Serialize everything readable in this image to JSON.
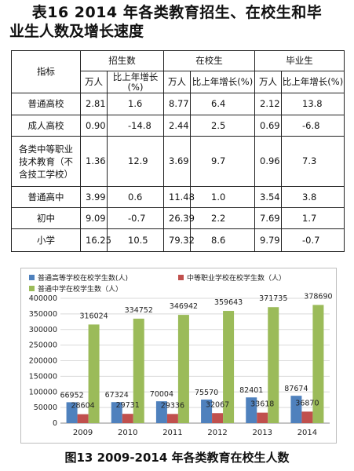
{
  "title": {
    "line1": "表16  2014 年各类教育招生、在校生和毕",
    "line2": "业生人数及增长速度"
  },
  "table": {
    "corner": "指标",
    "groups": [
      "招生数",
      "在校生",
      "毕业生"
    ],
    "subheaders": [
      "万人",
      "比上年增长(%)",
      "万人",
      "比上年增长(%)",
      "万人",
      "比上年增长(%)"
    ],
    "rows": [
      {
        "name": "普通高校",
        "values": [
          "2.81",
          "1.6",
          "8.77",
          "6.4",
          "2.12",
          "13.8"
        ]
      },
      {
        "name": "成人高校",
        "values": [
          "0.90",
          "-14.8",
          "2.44",
          "2.5",
          "0.69",
          "-6.8"
        ]
      },
      {
        "name": "各类中等职业技术教育（不含技工学校）",
        "values": [
          "1.36",
          "12.9",
          "3.69",
          "9.7",
          "0.96",
          "7.3"
        ]
      },
      {
        "name": "普通高中",
        "values": [
          "3.99",
          "0.6",
          "11.48",
          "1.0",
          "3.54",
          "3.8"
        ]
      },
      {
        "name": "初中",
        "values": [
          "9.09",
          "-0.7",
          "26.39",
          "2.2",
          "7.69",
          "1.7"
        ]
      },
      {
        "name": "小学",
        "values": [
          "16.25",
          "10.5",
          "79.32",
          "8.6",
          "9.79",
          "-0.7"
        ]
      }
    ]
  },
  "chart_data": {
    "type": "bar",
    "categories": [
      "2009",
      "2010",
      "2011",
      "2012",
      "2013",
      "2014"
    ],
    "series": [
      {
        "name": "普通高等学校在校学生数(人)",
        "color": "#4f81bd",
        "values": [
          66952,
          67324,
          70004,
          75570,
          82401,
          87674
        ]
      },
      {
        "name": "中等职业学校在校学生数（人）",
        "color": "#c0504d",
        "values": [
          28604,
          29731,
          29336,
          32067,
          33618,
          36870
        ]
      },
      {
        "name": "普通中学在校学生数（人）",
        "color": "#9bbb59",
        "values": [
          316024,
          334752,
          346942,
          359643,
          371735,
          378690
        ]
      }
    ],
    "ylim": [
      0,
      400000
    ],
    "yticks": [
      "0",
      "50000",
      "100000",
      "150000",
      "200000",
      "250000",
      "300000",
      "350000",
      "400000"
    ],
    "grid": true,
    "legend": "top"
  },
  "caption": "图13    2009-2014 年各类教育在校生人数"
}
